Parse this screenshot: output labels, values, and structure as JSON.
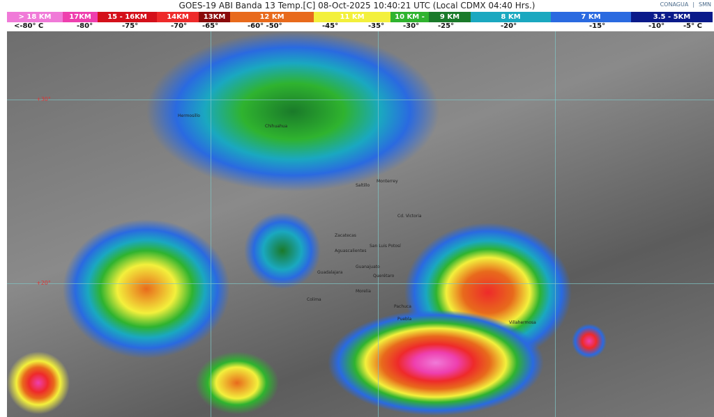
{
  "header": {
    "title": "GOES-19 ABI Banda 13 Temp.[C] 08-Oct-2025 10:40:21 UTC (Local CDMX  04:40 Hrs.)",
    "logos": [
      "CONAGUA",
      "SMN"
    ]
  },
  "legend": {
    "segments": [
      {
        "label": "> 18 KM",
        "color": "#f07ad8"
      },
      {
        "label": "17KM",
        "color": "#ee3fae"
      },
      {
        "label": "15 - 16KM",
        "color": "#d4101a"
      },
      {
        "label": "14KM",
        "color": "#ee2a2a"
      },
      {
        "label": "13KM",
        "color": "#8a0a0a"
      },
      {
        "label": "12 KM",
        "color": "#e86a1c"
      },
      {
        "label": "11 KM",
        "color": "#f3f03c"
      },
      {
        "label": "10 KM -",
        "color": "#2fb32f"
      },
      {
        "label": "9 KM",
        "color": "#1a7a2a"
      },
      {
        "label": "8 KM",
        "color": "#1aa8c0"
      },
      {
        "label": "7 KM",
        "color": "#2a6ae0"
      },
      {
        "label": "3.5 - 5KM",
        "color": "#0a1a8a"
      }
    ],
    "temps": [
      "<-80° C",
      "-80°",
      "-75°",
      "-70°",
      "-65°",
      "-60°  -50°",
      "-45°",
      "-35°",
      "-30°",
      "-25°",
      "-20°",
      "-15°",
      "-10°",
      "-5°  C"
    ]
  },
  "map": {
    "latitudes": [
      "+30°",
      "+20°"
    ],
    "cities": [
      "Hermosillo",
      "Chihuahua",
      "Monterrey",
      "Saltillo",
      "Cd. Victoria",
      "Zacatecas",
      "San Luis Potosí",
      "Aguascalientes",
      "Guadalajara",
      "Guanajuato",
      "Querétaro",
      "Morelia",
      "Colima",
      "Pachuca",
      "Puebla",
      "Villahermosa"
    ]
  }
}
